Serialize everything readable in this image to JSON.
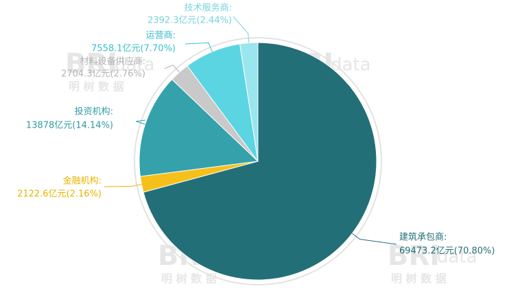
{
  "chart_data": {
    "type": "pie",
    "categories": [
      "建筑承包商:",
      "金融机构:",
      "投资机构:",
      "材料设备供应商:",
      "运营商:",
      "技术服务商:"
    ],
    "values": [
      69473.2,
      2122.6,
      13878,
      2704.3,
      7558.1,
      2392.3
    ],
    "value_labels": [
      "69473.2亿元(70.80%)",
      "2122.6亿元(2.16%)",
      "13878亿元(14.14%)",
      "2704.3亿元(2.76%)",
      "7558.1亿元(7.70%)",
      "2392.3亿元(2.44%)"
    ],
    "colors": [
      "#236f77",
      "#f5c01a",
      "#35a1ab",
      "#c9c9c9",
      "#5ad5e1",
      "#9be6ee"
    ],
    "label_colors": [
      "#236f77",
      "#e8b400",
      "#2f9aa5",
      "#b3b3b3",
      "#38c0ce",
      "#78d3de"
    ],
    "watermark": {
      "brand": "BRI",
      "suffix": "data",
      "cn": "明 树 数 据"
    }
  }
}
